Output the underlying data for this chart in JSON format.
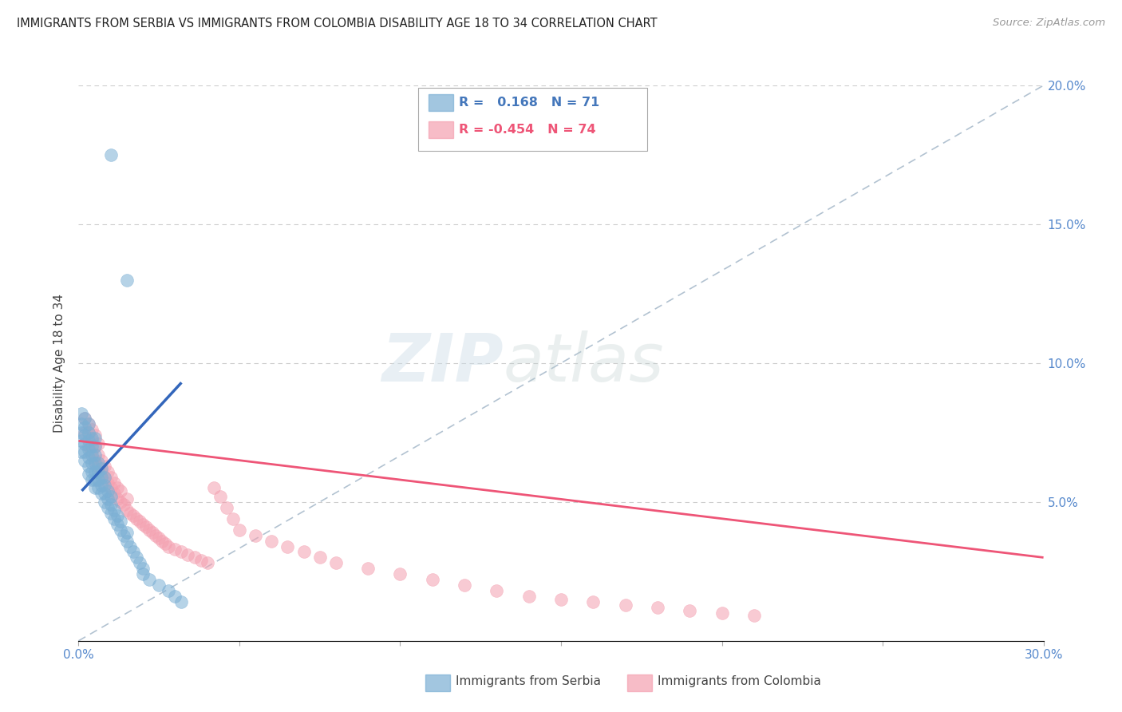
{
  "title": "IMMIGRANTS FROM SERBIA VS IMMIGRANTS FROM COLOMBIA DISABILITY AGE 18 TO 34 CORRELATION CHART",
  "source": "Source: ZipAtlas.com",
  "ylabel": "Disability Age 18 to 34",
  "xlim": [
    0.0,
    0.3
  ],
  "ylim": [
    0.0,
    0.2
  ],
  "serbia_color": "#7BAFD4",
  "colombia_color": "#F4A0B0",
  "serbia_R": 0.168,
  "serbia_N": 71,
  "colombia_R": -0.454,
  "colombia_N": 74,
  "serbia_line_color": "#3366BB",
  "colombia_line_color": "#EE5577",
  "diagonal_line_color": "#AABCCC",
  "watermark_zip": "ZIP",
  "watermark_atlas": "atlas",
  "legend_label_serbia": "Immigrants from Serbia",
  "legend_label_colombia": "Immigrants from Colombia",
  "serbia_x": [
    0.001,
    0.001,
    0.001,
    0.001,
    0.001,
    0.002,
    0.002,
    0.002,
    0.002,
    0.002,
    0.002,
    0.003,
    0.003,
    0.003,
    0.003,
    0.003,
    0.003,
    0.003,
    0.004,
    0.004,
    0.004,
    0.004,
    0.004,
    0.004,
    0.005,
    0.005,
    0.005,
    0.005,
    0.005,
    0.005,
    0.005,
    0.006,
    0.006,
    0.006,
    0.006,
    0.007,
    0.007,
    0.007,
    0.007,
    0.008,
    0.008,
    0.008,
    0.008,
    0.009,
    0.009,
    0.009,
    0.01,
    0.01,
    0.01,
    0.011,
    0.011,
    0.012,
    0.012,
    0.013,
    0.013,
    0.014,
    0.015,
    0.015,
    0.016,
    0.017,
    0.018,
    0.019,
    0.02,
    0.02,
    0.022,
    0.025,
    0.028,
    0.03,
    0.032,
    0.015,
    0.01
  ],
  "serbia_y": [
    0.068,
    0.072,
    0.075,
    0.078,
    0.082,
    0.065,
    0.068,
    0.071,
    0.074,
    0.077,
    0.08,
    0.06,
    0.063,
    0.066,
    0.069,
    0.072,
    0.075,
    0.078,
    0.058,
    0.061,
    0.064,
    0.067,
    0.07,
    0.073,
    0.055,
    0.058,
    0.061,
    0.064,
    0.067,
    0.07,
    0.073,
    0.055,
    0.058,
    0.061,
    0.064,
    0.053,
    0.056,
    0.059,
    0.062,
    0.05,
    0.053,
    0.056,
    0.059,
    0.048,
    0.051,
    0.054,
    0.046,
    0.049,
    0.052,
    0.044,
    0.047,
    0.042,
    0.045,
    0.04,
    0.043,
    0.038,
    0.036,
    0.039,
    0.034,
    0.032,
    0.03,
    0.028,
    0.026,
    0.024,
    0.022,
    0.02,
    0.018,
    0.016,
    0.014,
    0.13,
    0.175
  ],
  "colombia_x": [
    0.002,
    0.002,
    0.003,
    0.003,
    0.003,
    0.004,
    0.004,
    0.004,
    0.005,
    0.005,
    0.005,
    0.006,
    0.006,
    0.006,
    0.007,
    0.007,
    0.008,
    0.008,
    0.009,
    0.009,
    0.01,
    0.01,
    0.011,
    0.011,
    0.012,
    0.012,
    0.013,
    0.013,
    0.014,
    0.015,
    0.015,
    0.016,
    0.017,
    0.018,
    0.019,
    0.02,
    0.021,
    0.022,
    0.023,
    0.024,
    0.025,
    0.026,
    0.027,
    0.028,
    0.03,
    0.032,
    0.034,
    0.036,
    0.038,
    0.04,
    0.042,
    0.044,
    0.046,
    0.048,
    0.05,
    0.055,
    0.06,
    0.065,
    0.07,
    0.075,
    0.08,
    0.09,
    0.1,
    0.11,
    0.12,
    0.13,
    0.14,
    0.15,
    0.16,
    0.17,
    0.18,
    0.19,
    0.2,
    0.21
  ],
  "colombia_y": [
    0.075,
    0.08,
    0.07,
    0.075,
    0.078,
    0.068,
    0.072,
    0.076,
    0.065,
    0.07,
    0.074,
    0.063,
    0.067,
    0.071,
    0.061,
    0.065,
    0.059,
    0.063,
    0.057,
    0.061,
    0.055,
    0.059,
    0.053,
    0.057,
    0.051,
    0.055,
    0.05,
    0.054,
    0.049,
    0.047,
    0.051,
    0.046,
    0.045,
    0.044,
    0.043,
    0.042,
    0.041,
    0.04,
    0.039,
    0.038,
    0.037,
    0.036,
    0.035,
    0.034,
    0.033,
    0.032,
    0.031,
    0.03,
    0.029,
    0.028,
    0.055,
    0.052,
    0.048,
    0.044,
    0.04,
    0.038,
    0.036,
    0.034,
    0.032,
    0.03,
    0.028,
    0.026,
    0.024,
    0.022,
    0.02,
    0.018,
    0.016,
    0.015,
    0.014,
    0.013,
    0.012,
    0.011,
    0.01,
    0.009
  ],
  "serbia_line_x": [
    0.001,
    0.032
  ],
  "serbia_line_y": [
    0.054,
    0.093
  ],
  "colombia_line_x": [
    0.0,
    0.3
  ],
  "colombia_line_y": [
    0.072,
    0.03
  ]
}
